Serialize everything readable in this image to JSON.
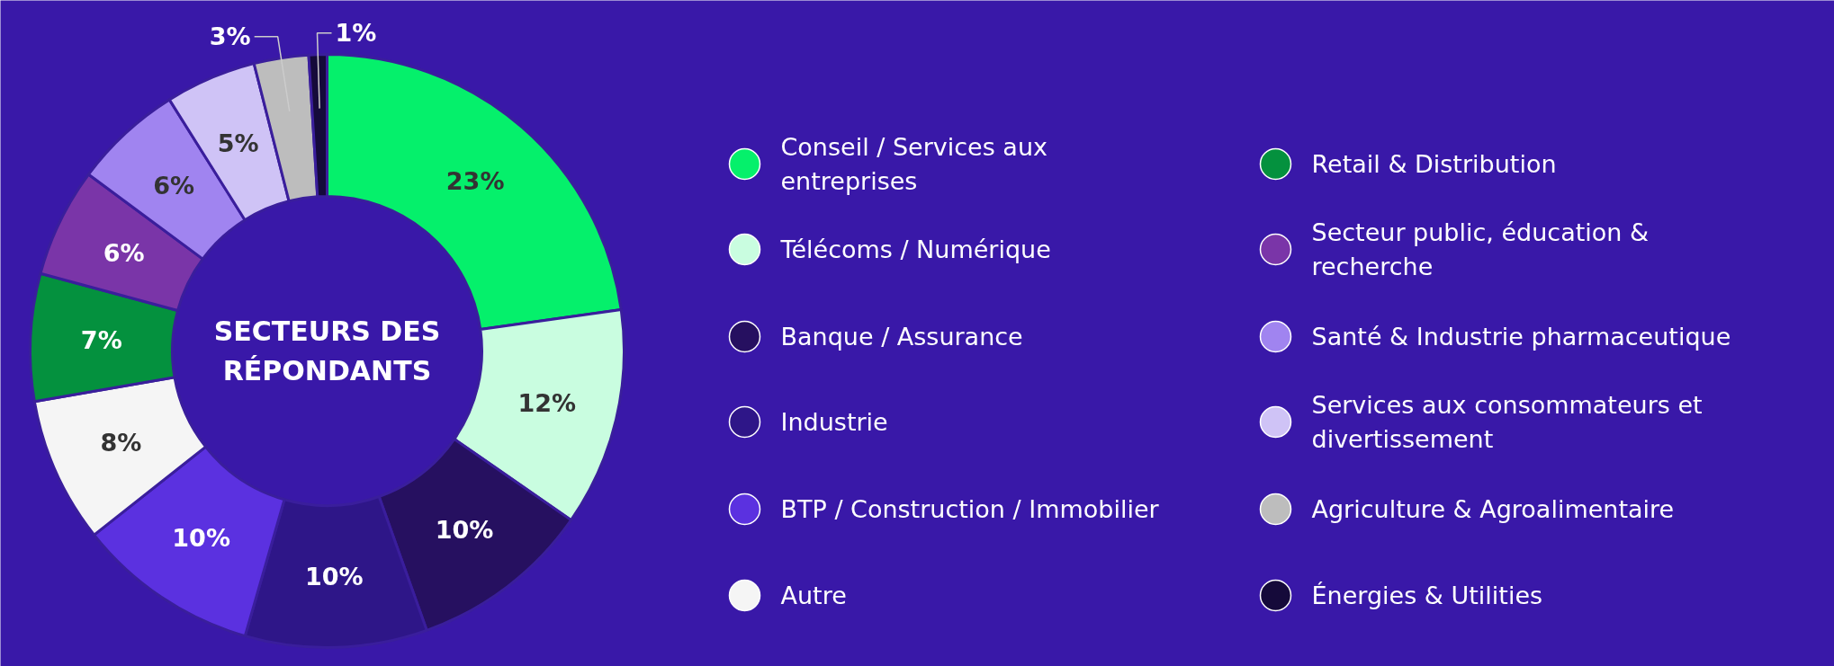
{
  "chart_data": {
    "type": "donut",
    "title": "SECTEURS DES RÉPONDANTS",
    "categories": [
      "Conseil / Services aux entreprises",
      "Télécoms / Numérique",
      "Banque / Assurance",
      "Industrie",
      "BTP / Construction / Immobilier",
      "Autre",
      "Retail & Distribution",
      "Secteur public, éducation & recherche",
      "Santé & Industrie pharmaceutique",
      "Services aux consommateurs et divertissement",
      "Agriculture & Agroalimentaire",
      "Énergies & Utilities"
    ],
    "values": [
      23,
      12,
      10,
      10,
      10,
      8,
      7,
      6,
      6,
      5,
      3,
      1
    ],
    "value_labels": [
      "23%",
      "12%",
      "10%",
      "10%",
      "10%",
      "8%",
      "7%",
      "6%",
      "6%",
      "5%",
      "3%",
      "1%"
    ],
    "colors": [
      "#05f06b",
      "#c9fde0",
      "#261060",
      "#2e1688",
      "#5b31e0",
      "#f5f5f5",
      "#04913e",
      "#7a35a8",
      "#a084f0",
      "#cfc3f6",
      "#bdbdbd",
      "#150a3a"
    ],
    "legend": "right"
  }
}
